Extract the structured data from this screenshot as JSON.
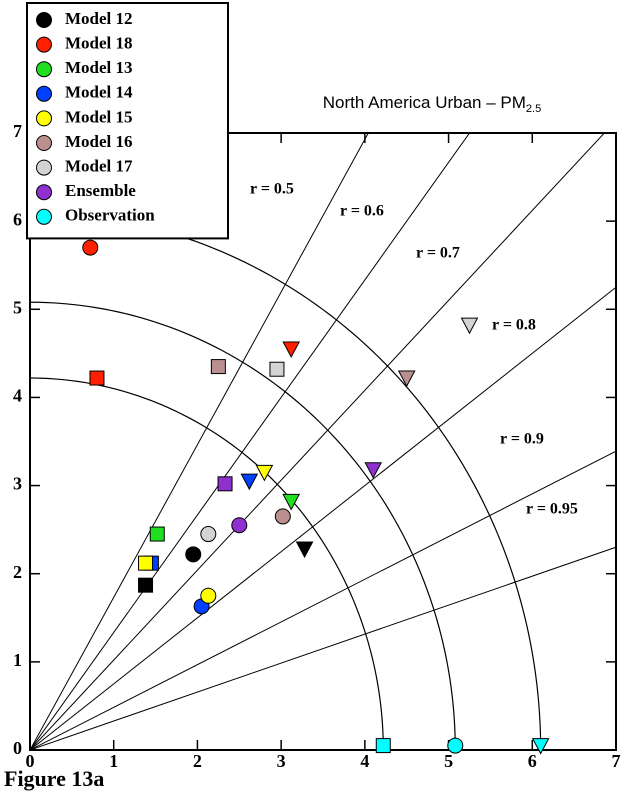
{
  "chart_data": {
    "type": "scatter",
    "title": "North America Urban – PM",
    "title_subscript": "2.5",
    "caption": "Figure 13a",
    "xlim": [
      0,
      7
    ],
    "ylim": [
      0,
      7
    ],
    "xticks": [
      0,
      1,
      2,
      3,
      4,
      5,
      6,
      7
    ],
    "yticks": [
      0,
      1,
      2,
      3,
      4,
      5,
      6,
      7
    ],
    "correlations": [
      {
        "value": 0.5,
        "label": "r = 0.5"
      },
      {
        "value": 0.6,
        "label": "r = 0.6"
      },
      {
        "value": 0.7,
        "label": "r = 0.7"
      },
      {
        "value": 0.8,
        "label": "r = 0.8"
      },
      {
        "value": 0.9,
        "label": "r = 0.9"
      },
      {
        "value": 0.95,
        "label": "r = 0.95"
      }
    ],
    "legend": "upper left",
    "series": [
      {
        "name": "Model 12",
        "color": "#000000",
        "markers": [
          "circle",
          "square",
          "triangle-down"
        ],
        "x": [
          1.95,
          1.38,
          3.28
        ],
        "y": [
          2.22,
          1.87,
          2.28
        ]
      },
      {
        "name": "Model 18",
        "color": "#ff2000",
        "markers": [
          "circle",
          "square",
          "triangle-down"
        ],
        "x": [
          0.72,
          0.8,
          3.12
        ],
        "y": [
          5.7,
          4.22,
          4.55
        ]
      },
      {
        "name": "Model 13",
        "color": "#20e020",
        "markers": [
          "square",
          "triangle-down"
        ],
        "x": [
          1.52,
          3.12
        ],
        "y": [
          2.45,
          2.82
        ]
      },
      {
        "name": "Model 14",
        "color": "#0040ff",
        "markers": [
          "circle",
          "square",
          "triangle-down"
        ],
        "x": [
          2.05,
          1.45,
          2.62
        ],
        "y": [
          1.63,
          2.12,
          3.05
        ]
      },
      {
        "name": "Model 15",
        "color": "#ffff00",
        "markers": [
          "circle",
          "square",
          "triangle-down"
        ],
        "x": [
          2.13,
          1.38,
          2.8
        ],
        "y": [
          1.75,
          2.12,
          3.15
        ]
      },
      {
        "name": "Model 16",
        "color": "#bc8f8f",
        "markers": [
          "circle",
          "square",
          "triangle-down"
        ],
        "x": [
          3.02,
          2.25,
          4.5
        ],
        "y": [
          2.65,
          4.35,
          4.22
        ]
      },
      {
        "name": "Model 17",
        "color": "#d3d3d3",
        "markers": [
          "circle",
          "square",
          "triangle-down"
        ],
        "x": [
          2.13,
          2.95,
          5.25
        ],
        "y": [
          2.45,
          4.32,
          4.82
        ]
      },
      {
        "name": "Ensemble",
        "color": "#9030d0",
        "markers": [
          "circle",
          "square",
          "triangle-down"
        ],
        "x": [
          2.5,
          2.33,
          4.1
        ],
        "y": [
          2.55,
          3.02,
          3.18
        ]
      },
      {
        "name": "Observation",
        "color": "#00ffff",
        "markers": [
          "circle",
          "square",
          "triangle-down"
        ],
        "x": [
          5.08,
          4.22,
          6.1
        ],
        "y": [
          0.05,
          0.05,
          0.05
        ]
      }
    ]
  }
}
